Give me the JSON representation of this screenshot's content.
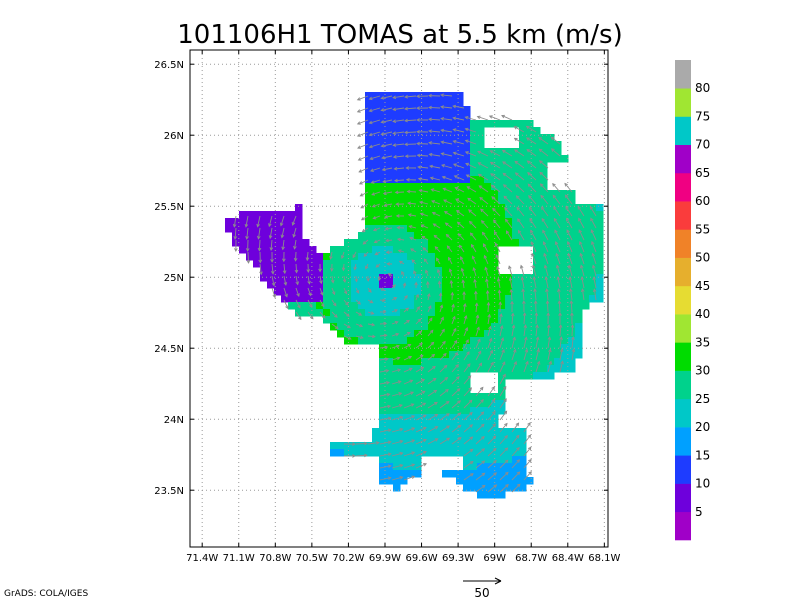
{
  "title": "101106H1 TOMAS at 5.5 km (m/s)",
  "credit": "GrADS: COLA/IGES",
  "vector_scale_label": "50",
  "map": {
    "lon_range": [
      -71.5,
      -68.07
    ],
    "lat_range": [
      23.1,
      26.6
    ],
    "x_ticks": [
      {
        "lon": -71.4,
        "label": "71.4W"
      },
      {
        "lon": -71.1,
        "label": "71.1W"
      },
      {
        "lon": -70.8,
        "label": "70.8W"
      },
      {
        "lon": -70.5,
        "label": "70.5W"
      },
      {
        "lon": -70.2,
        "label": "70.2W"
      },
      {
        "lon": -69.9,
        "label": "69.9W"
      },
      {
        "lon": -69.6,
        "label": "69.6W"
      },
      {
        "lon": -69.3,
        "label": "69.3W"
      },
      {
        "lon": -69.0,
        "label": "69W"
      },
      {
        "lon": -68.7,
        "label": "68.7W"
      },
      {
        "lon": -68.4,
        "label": "68.4W"
      },
      {
        "lon": -68.1,
        "label": "68.1W"
      }
    ],
    "y_ticks": [
      {
        "lat": 23.5,
        "label": "23.5N"
      },
      {
        "lat": 24.0,
        "label": "24N"
      },
      {
        "lat": 24.5,
        "label": "24.5N"
      },
      {
        "lat": 25.0,
        "label": "25N"
      },
      {
        "lat": 25.5,
        "label": "25.5N"
      },
      {
        "lat": 26.0,
        "label": "26N"
      },
      {
        "lat": 26.5,
        "label": "26.5N"
      }
    ],
    "center": {
      "lon": -69.88,
      "lat": 24.98
    }
  },
  "legend": {
    "labels": [
      "5",
      "10",
      "15",
      "20",
      "25",
      "30",
      "35",
      "40",
      "45",
      "50",
      "55",
      "60",
      "65",
      "70",
      "75",
      "80"
    ],
    "colors": [
      "#a000c8",
      "#6e00dc",
      "#1e3cff",
      "#00a0ff",
      "#00c8c8",
      "#00d28c",
      "#00dc00",
      "#a0e632",
      "#e6dc32",
      "#e6af2d",
      "#f08228",
      "#fa3c3c",
      "#f00082",
      "#a000c8",
      "#00c8c8",
      "#a0e632",
      "#aaaaaa"
    ]
  }
}
